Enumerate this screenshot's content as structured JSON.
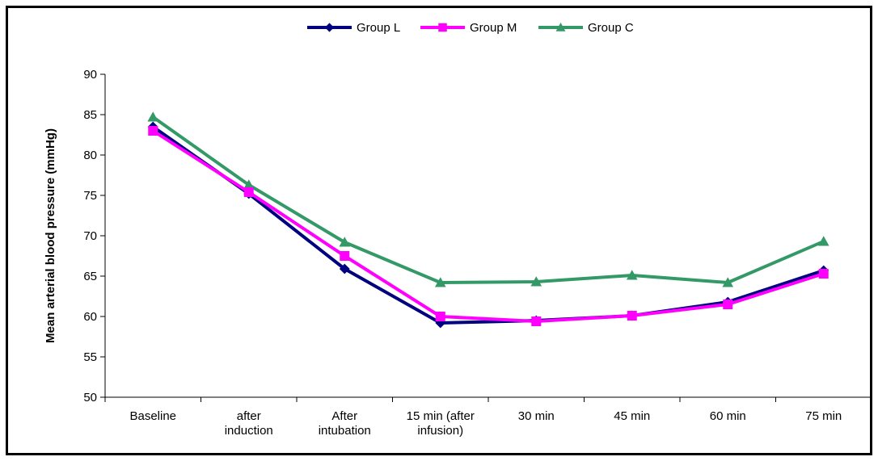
{
  "chart_data": {
    "type": "line",
    "title": "",
    "xlabel": "",
    "ylabel": "Mean arterial blood pressure (mmHg)",
    "ylim": [
      50,
      90
    ],
    "yticks": [
      50,
      55,
      60,
      65,
      70,
      75,
      80,
      85,
      90
    ],
    "grid": false,
    "legend": "top-center",
    "categories": [
      [
        "Baseline"
      ],
      [
        "after",
        "induction"
      ],
      [
        "After",
        "intubation"
      ],
      [
        "15 min (after",
        "infusion)"
      ],
      [
        "30 min"
      ],
      [
        "45 min"
      ],
      [
        "60 min"
      ],
      [
        "75 min"
      ]
    ],
    "series": [
      {
        "name": "Group L",
        "color": "#000080",
        "marker": "diamond",
        "values": [
          83.5,
          75.2,
          65.9,
          59.2,
          59.5,
          60.1,
          61.8,
          65.7
        ]
      },
      {
        "name": "Group M",
        "color": "#FF00FF",
        "marker": "square",
        "values": [
          83.0,
          75.4,
          67.5,
          60.0,
          59.4,
          60.1,
          61.5,
          65.3
        ]
      },
      {
        "name": "Group C",
        "color": "#339966",
        "marker": "triangle",
        "values": [
          84.7,
          76.3,
          69.2,
          64.2,
          64.3,
          65.1,
          64.2,
          69.3
        ]
      }
    ]
  }
}
